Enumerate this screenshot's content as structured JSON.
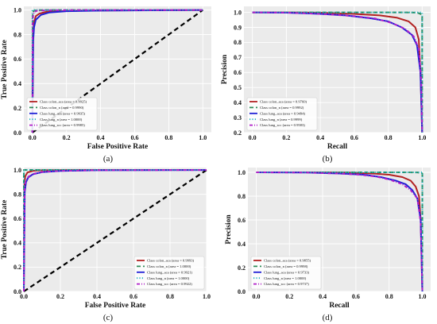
{
  "chart_data": [
    {
      "type": "line",
      "panel": "(a)",
      "kind": "roc",
      "xlabel": "False Positive Rate",
      "ylabel": "True Positive Rate",
      "xlim": [
        -0.05,
        1.05
      ],
      "ylim": [
        0.0,
        1.03
      ],
      "xticks": [
        "0.0",
        "0.2",
        "0.4",
        "0.6",
        "0.8",
        "1.0"
      ],
      "yticks": [
        "0.0",
        "0.2",
        "0.4",
        "0.6",
        "0.8",
        "1.0"
      ],
      "xtick_values": [
        0,
        0.2,
        0.4,
        0.6,
        0.8,
        1.0
      ],
      "ytick_values": [
        0,
        0.2,
        0.4,
        0.6,
        0.8,
        1.0
      ],
      "grid": true,
      "legend": "bottom-left",
      "diagonal": true,
      "series": [
        {
          "name": "Class colon_aca (area = 0.9925)",
          "color": "#b22222",
          "dash": "solid",
          "x": [
            0,
            0.005,
            0.01,
            0.02,
            0.04,
            0.08,
            0.15,
            0.3,
            0.6,
            1.0
          ],
          "y": [
            0,
            0.82,
            0.9,
            0.95,
            0.97,
            0.985,
            0.99,
            0.995,
            0.998,
            1.0
          ]
        },
        {
          "name": "Class colon_n (area = 0.9990)",
          "color": "#2e8b57",
          "dash": "dashed",
          "x": [
            0,
            0.002,
            0.005,
            0.01,
            0.03,
            0.1,
            1.0
          ],
          "y": [
            0,
            0.96,
            0.985,
            0.995,
            0.999,
            1.0,
            1.0
          ]
        },
        {
          "name": "Class lung_aca (area = 0.9935)",
          "color": "#1f1fd6",
          "dash": "solid",
          "x": [
            0,
            0.005,
            0.01,
            0.02,
            0.05,
            0.1,
            0.2,
            0.4,
            0.7,
            1.0
          ],
          "y": [
            0,
            0.75,
            0.86,
            0.92,
            0.96,
            0.98,
            0.99,
            0.995,
            0.998,
            1.0
          ]
        },
        {
          "name": "Class lung_n (area = 1.0000)",
          "color": "#20b2c0",
          "dash": "dotted",
          "x": [
            0,
            0,
            1.0
          ],
          "y": [
            0,
            1.0,
            1.0
          ]
        },
        {
          "name": "Class lung_scc (area = 0.9985)",
          "color": "#b020c8",
          "dash": "dashdot",
          "x": [
            0,
            0.002,
            0.005,
            0.01,
            0.03,
            0.1,
            0.3,
            1.0
          ],
          "y": [
            0,
            0.9,
            0.96,
            0.985,
            0.995,
            0.998,
            1.0,
            1.0
          ]
        }
      ]
    },
    {
      "type": "line",
      "panel": "(b)",
      "kind": "pr",
      "xlabel": "Recall",
      "ylabel": "Precision",
      "xlim": [
        -0.05,
        1.05
      ],
      "ylim": [
        0.2,
        1.04
      ],
      "xticks": [
        "0.0",
        "0.2",
        "0.4",
        "0.6",
        "0.8",
        "1.0"
      ],
      "yticks": [
        "0.2",
        "0.3",
        "0.4",
        "0.5",
        "0.6",
        "0.7",
        "0.8",
        "0.9",
        "1.0"
      ],
      "xtick_values": [
        0,
        0.2,
        0.4,
        0.6,
        0.8,
        1.0
      ],
      "ytick_values": [
        0.2,
        0.3,
        0.4,
        0.5,
        0.6,
        0.7,
        0.8,
        0.9,
        1.0
      ],
      "grid": true,
      "legend": "bottom-left",
      "diagonal": false,
      "series": [
        {
          "name": "Class colon_aca (area = 0.9760)",
          "color": "#b22222",
          "dash": "solid",
          "x": [
            0,
            0.2,
            0.4,
            0.6,
            0.75,
            0.85,
            0.92,
            0.96,
            0.98,
            0.99,
            1.0
          ],
          "y": [
            1.0,
            1.0,
            0.998,
            0.99,
            0.98,
            0.965,
            0.94,
            0.9,
            0.82,
            0.6,
            0.2
          ]
        },
        {
          "name": "Class colon_n (area = 0.9992)",
          "color": "#2e8b57",
          "dash": "dashed",
          "x": [
            0,
            0.5,
            0.9,
            0.97,
            0.99,
            1.0,
            1.0
          ],
          "y": [
            1.0,
            1.0,
            1.0,
            0.998,
            0.99,
            0.97,
            0.2
          ]
        },
        {
          "name": "Class lung_aca (area = 0.9494)",
          "color": "#1f1fd6",
          "dash": "solid",
          "x": [
            0,
            0.2,
            0.4,
            0.55,
            0.7,
            0.8,
            0.88,
            0.94,
            0.97,
            0.99,
            1.0
          ],
          "y": [
            1.0,
            0.998,
            0.99,
            0.98,
            0.96,
            0.94,
            0.9,
            0.85,
            0.78,
            0.6,
            0.2
          ]
        },
        {
          "name": "Class lung_n (area = 0.9999)",
          "color": "#20b2c0",
          "dash": "dotted",
          "x": [
            0,
            0.98,
            1.0,
            1.0
          ],
          "y": [
            1.0,
            1.0,
            0.999,
            0.2
          ]
        },
        {
          "name": "Class lung_scc (area = 0.9583)",
          "color": "#b020c8",
          "dash": "dashdot",
          "x": [
            0,
            0.2,
            0.4,
            0.6,
            0.72,
            0.82,
            0.9,
            0.95,
            0.98,
            0.995,
            1.0
          ],
          "y": [
            1.0,
            0.998,
            0.99,
            0.975,
            0.96,
            0.93,
            0.89,
            0.84,
            0.76,
            0.55,
            0.2
          ]
        }
      ]
    },
    {
      "type": "line",
      "panel": "(c)",
      "kind": "roc",
      "xlabel": "False Positive Rate",
      "ylabel": "True Positive Rate",
      "xlim": [
        0.0,
        1.0
      ],
      "ylim": [
        0.0,
        1.02
      ],
      "xticks": [
        "0.0",
        "0.2",
        "0.4",
        "0.6",
        "0.8",
        "1.0"
      ],
      "yticks": [
        "0.0",
        "0.2",
        "0.4",
        "0.6",
        "0.8",
        "1.0"
      ],
      "xtick_values": [
        0,
        0.2,
        0.4,
        0.6,
        0.8,
        1.0
      ],
      "ytick_values": [
        0,
        0.2,
        0.4,
        0.6,
        0.8,
        1.0
      ],
      "grid": true,
      "legend": "bottom-right",
      "diagonal": true,
      "series": [
        {
          "name": "Class colon_aca (area = 0.9993)",
          "color": "#b22222",
          "dash": "solid",
          "x": [
            0,
            0.003,
            0.008,
            0.02,
            0.05,
            0.1,
            0.3,
            1.0
          ],
          "y": [
            0,
            0.9,
            0.95,
            0.98,
            0.993,
            0.998,
            1.0,
            1.0
          ]
        },
        {
          "name": "Class colon_n (area = 1.0000)",
          "color": "#2e8b57",
          "dash": "dashed",
          "x": [
            0,
            0,
            1.0
          ],
          "y": [
            0,
            1.0,
            1.0
          ]
        },
        {
          "name": "Class lung_aca (area = 0.9921)",
          "color": "#1f1fd6",
          "dash": "solid",
          "x": [
            0,
            0.005,
            0.012,
            0.025,
            0.05,
            0.1,
            0.2,
            0.4,
            1.0
          ],
          "y": [
            0,
            0.82,
            0.9,
            0.94,
            0.965,
            0.982,
            0.992,
            0.998,
            1.0
          ]
        },
        {
          "name": "Class lung_n (area = 1.0000)",
          "color": "#20b2c0",
          "dash": "dotted",
          "x": [
            0,
            0,
            1.0
          ],
          "y": [
            0,
            1.0,
            1.0
          ]
        },
        {
          "name": "Class lung_scc (area = 0.9922)",
          "color": "#b020c8",
          "dash": "dashdot",
          "x": [
            0,
            0.004,
            0.01,
            0.025,
            0.05,
            0.1,
            0.2,
            0.4,
            1.0
          ],
          "y": [
            0,
            0.84,
            0.91,
            0.945,
            0.968,
            0.984,
            0.993,
            0.998,
            1.0
          ]
        }
      ]
    },
    {
      "type": "line",
      "panel": "(d)",
      "kind": "pr",
      "xlabel": "Recall",
      "ylabel": "Precision",
      "xlim": [
        -0.05,
        1.05
      ],
      "ylim": [
        0.0,
        1.04
      ],
      "xticks": [
        "0.0",
        "0.2",
        "0.4",
        "0.6",
        "0.8",
        "1.0"
      ],
      "yticks": [
        "0.0",
        "0.2",
        "0.4",
        "0.6",
        "0.8",
        "1.0"
      ],
      "xtick_values": [
        0,
        0.2,
        0.4,
        0.6,
        0.8,
        1.0
      ],
      "ytick_values": [
        0,
        0.2,
        0.4,
        0.6,
        0.8,
        1.0
      ],
      "grid": true,
      "legend": "bottom-left",
      "diagonal": false,
      "series": [
        {
          "name": "Class colon_aca (area = 0.9855)",
          "color": "#b22222",
          "dash": "solid",
          "x": [
            0,
            0.3,
            0.55,
            0.7,
            0.8,
            0.88,
            0.93,
            0.96,
            0.98,
            0.99,
            1.0
          ],
          "y": [
            1.0,
            1.0,
            0.998,
            0.99,
            0.98,
            0.96,
            0.93,
            0.88,
            0.8,
            0.6,
            0.0
          ]
        },
        {
          "name": "Class colon_n (area = 0.9998)",
          "color": "#2e8b57",
          "dash": "dashed",
          "x": [
            0,
            0.5,
            0.9,
            0.97,
            0.99,
            1.0,
            1.0
          ],
          "y": [
            1.0,
            1.0,
            1.0,
            0.999,
            0.995,
            0.99,
            0.0
          ]
        },
        {
          "name": "Class lung_aca (area = 0.9733)",
          "color": "#1f1fd6",
          "dash": "solid",
          "x": [
            0,
            0.3,
            0.5,
            0.65,
            0.75,
            0.84,
            0.9,
            0.94,
            0.97,
            0.99,
            1.0
          ],
          "y": [
            1.0,
            0.998,
            0.99,
            0.98,
            0.96,
            0.93,
            0.9,
            0.85,
            0.78,
            0.6,
            0.0
          ]
        },
        {
          "name": "Class lung_n (area = 1.0000)",
          "color": "#20b2c0",
          "dash": "dotted",
          "x": [
            0,
            1.0,
            1.0
          ],
          "y": [
            1.0,
            1.0,
            0.0
          ]
        },
        {
          "name": "Class lung_scc (area = 0.9737)",
          "color": "#b020c8",
          "dash": "dashdot",
          "x": [
            0,
            0.3,
            0.5,
            0.62,
            0.72,
            0.8,
            0.88,
            0.93,
            0.97,
            0.99,
            1.0
          ],
          "y": [
            1.0,
            0.998,
            0.99,
            0.98,
            0.965,
            0.94,
            0.9,
            0.85,
            0.78,
            0.58,
            0.0
          ]
        }
      ]
    }
  ]
}
